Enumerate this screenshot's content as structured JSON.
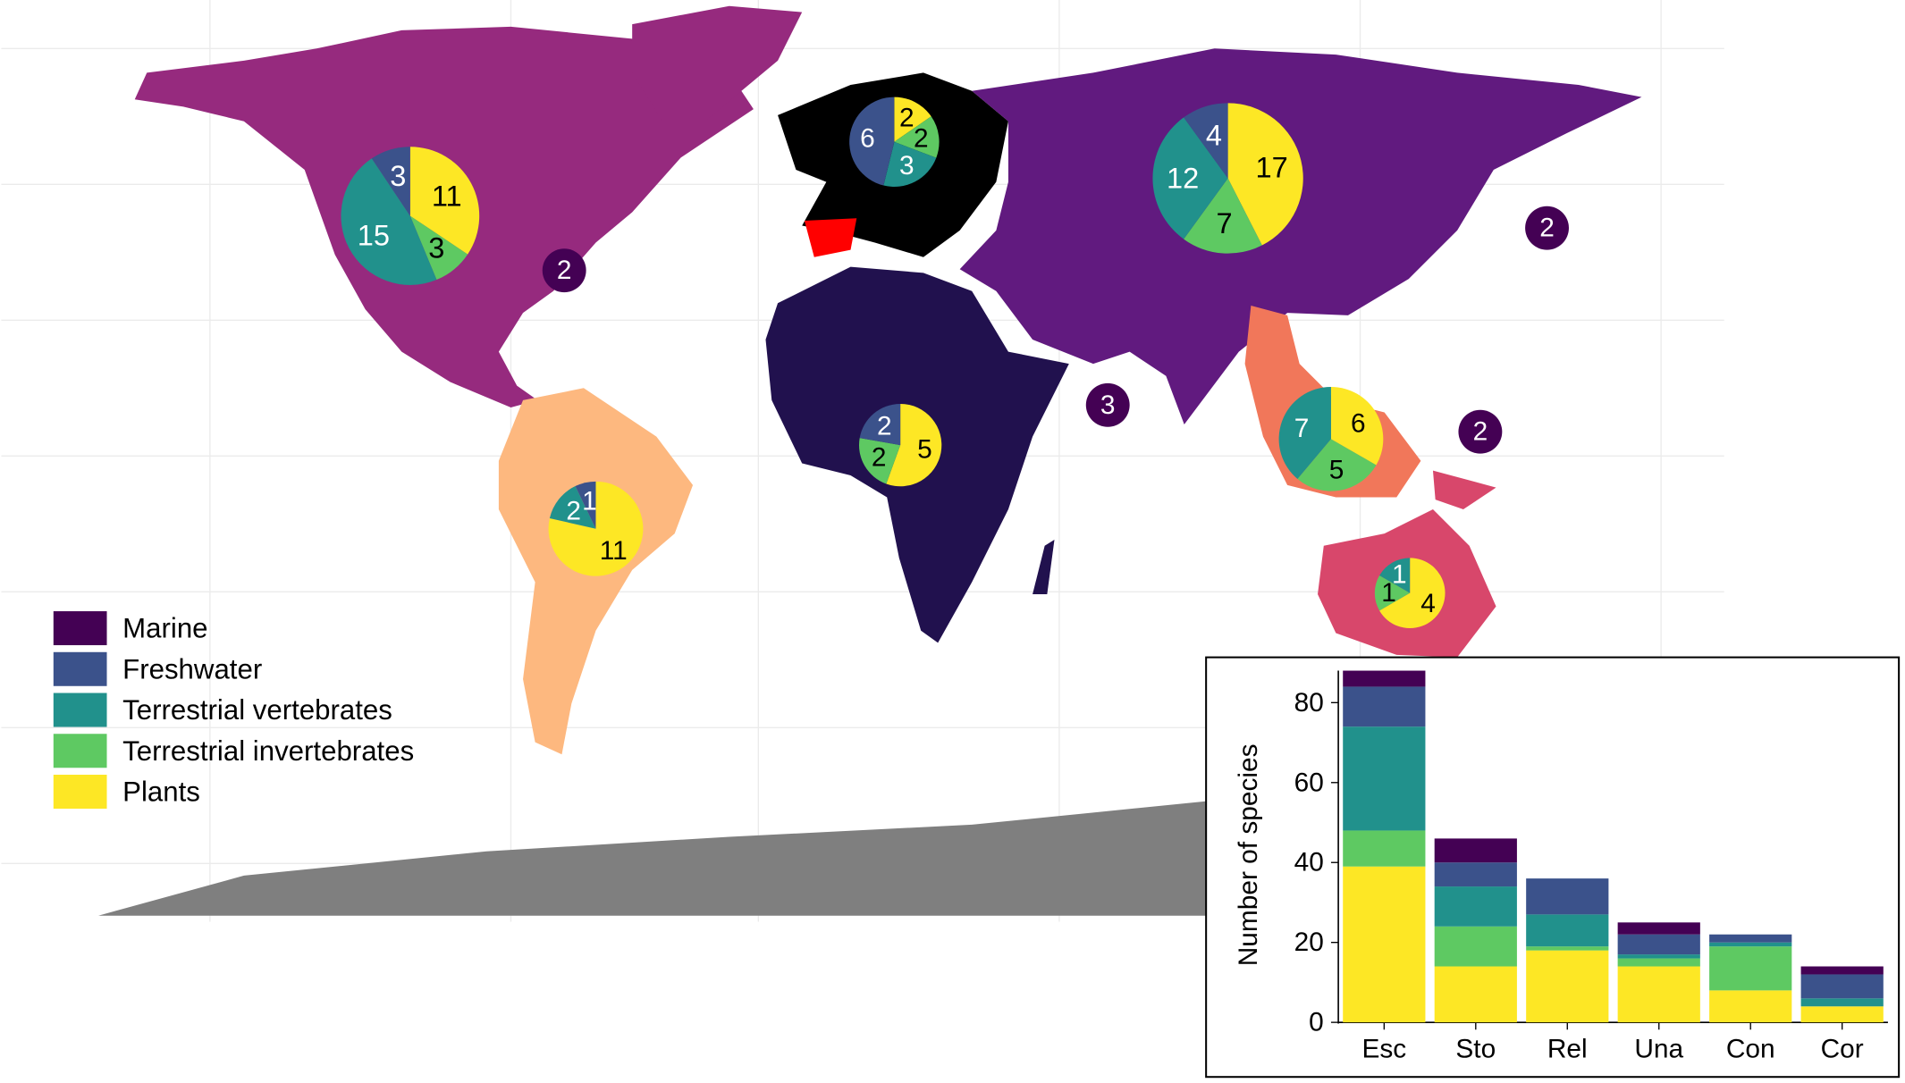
{
  "chart_data": [
    {
      "type": "bar",
      "stacked": true,
      "ylabel": "Number of species",
      "categories": [
        "Esc",
        "Sto",
        "Rel",
        "Una",
        "Con",
        "Cor"
      ],
      "series": [
        {
          "name": "Marine",
          "color": "#440154",
          "values": [
            4,
            6,
            0,
            3,
            0,
            2
          ]
        },
        {
          "name": "Freshwater",
          "color": "#3b528b",
          "values": [
            10,
            6,
            9,
            5,
            2,
            6
          ]
        },
        {
          "name": "Terrestrial vertebrates",
          "color": "#21918c",
          "values": [
            26,
            10,
            8,
            1,
            1,
            2
          ]
        },
        {
          "name": "Terrestrial invertebrates",
          "color": "#5ec962",
          "values": [
            9,
            10,
            1,
            2,
            11,
            0
          ]
        },
        {
          "name": "Plants",
          "color": "#fde725",
          "values": [
            39,
            14,
            18,
            14,
            8,
            4
          ]
        }
      ],
      "ylim": [
        0,
        88
      ],
      "yticks": [
        0,
        20,
        40,
        60,
        80
      ]
    },
    {
      "type": "pie",
      "values": [
        null,
        3,
        15,
        3,
        11
      ]
    },
    {
      "type": "pie",
      "values": [
        null,
        6,
        3,
        2,
        2
      ]
    },
    {
      "type": "pie",
      "values": [
        null,
        4,
        12,
        7,
        17
      ]
    },
    {
      "type": "pie",
      "values": [
        null,
        1,
        2,
        null,
        11
      ]
    },
    {
      "type": "pie",
      "values": [
        null,
        2,
        null,
        2,
        5
      ]
    },
    {
      "type": "pie",
      "values": [
        null,
        null,
        7,
        5,
        6
      ]
    },
    {
      "type": "pie",
      "values": [
        null,
        null,
        1,
        1,
        4
      ]
    },
    {
      "type": "marker",
      "value": 2
    },
    {
      "type": "marker",
      "value": 2
    },
    {
      "type": "marker",
      "value": 3
    },
    {
      "type": "marker",
      "value": 2
    }
  ]
}
